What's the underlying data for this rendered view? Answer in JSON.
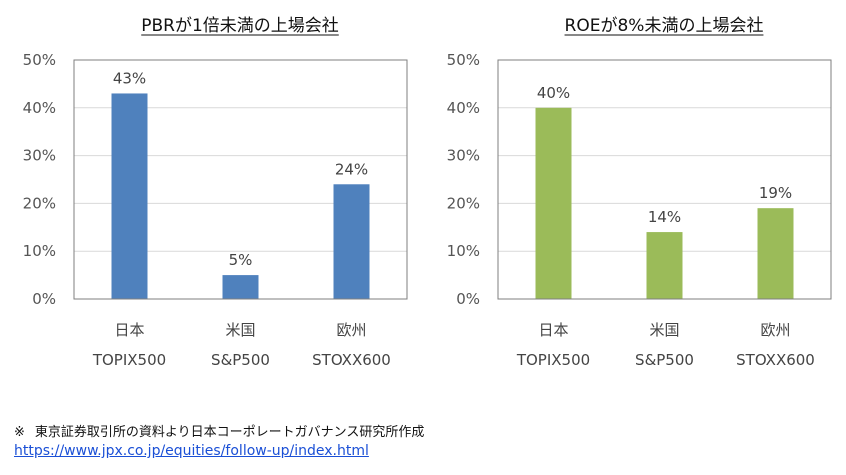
{
  "chart_data": [
    {
      "type": "bar",
      "title": "PBRが1倍未満の上場会社",
      "categories": [
        [
          "日本",
          "TOPIX500"
        ],
        [
          "米国",
          "S&P500"
        ],
        [
          "欧州",
          "STOXX600"
        ]
      ],
      "values": [
        43,
        5,
        24
      ],
      "value_labels": [
        "43%",
        "5%",
        "24%"
      ],
      "ylim": [
        0,
        50
      ],
      "yticks": [
        "0%",
        "10%",
        "20%",
        "30%",
        "40%",
        "50%"
      ],
      "grid": true,
      "legend": "none",
      "color": "#4f81bd"
    },
    {
      "type": "bar",
      "title": "ROEが8%未満の上場会社",
      "categories": [
        [
          "日本",
          "TOPIX500"
        ],
        [
          "米国",
          "S&P500"
        ],
        [
          "欧州",
          "STOXX600"
        ]
      ],
      "values": [
        40,
        14,
        19
      ],
      "value_labels": [
        "40%",
        "14%",
        "19%"
      ],
      "ylim": [
        0,
        50
      ],
      "yticks": [
        "0%",
        "10%",
        "20%",
        "30%",
        "40%",
        "50%"
      ],
      "grid": true,
      "legend": "none",
      "color": "#9bbb59"
    }
  ],
  "footer": {
    "mark": "※",
    "note": "東京証券取引所の資料より日本コーポレートガバナンス研究所作成",
    "link": "https://www.jpx.co.jp/equities/follow-up/index.html"
  }
}
